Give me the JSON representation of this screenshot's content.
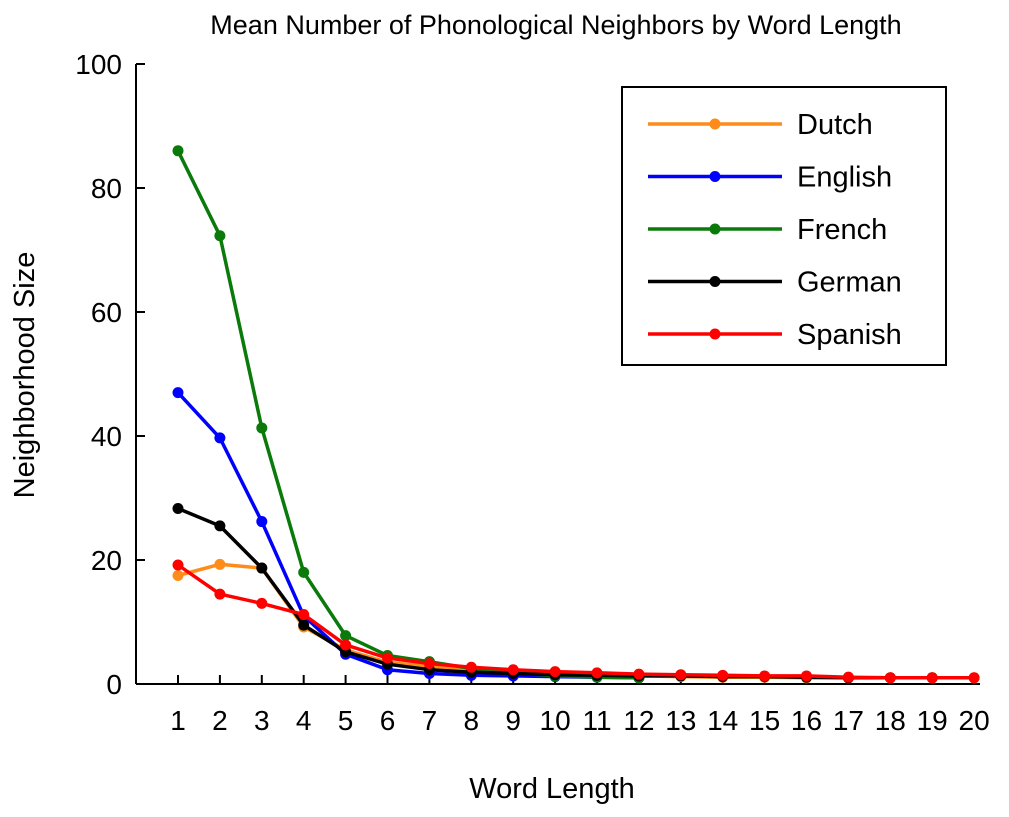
{
  "chart_data": {
    "type": "line",
    "title": "Mean Number of Phonological Neighbors by Word Length",
    "xlabel": "Word Length",
    "ylabel": "Neighborhood Size",
    "ylim": [
      0,
      100
    ],
    "yticks": [
      0,
      20,
      40,
      60,
      80,
      100
    ],
    "xlim": [
      0.5,
      20
    ],
    "x": [
      1,
      2,
      3,
      4,
      5,
      6,
      7,
      8,
      9,
      10,
      11,
      12,
      13,
      14,
      15,
      16,
      17,
      18,
      19,
      20
    ],
    "xtick_labels": [
      "1",
      "2",
      "3",
      "4",
      "5",
      "6",
      "7",
      "8",
      "9",
      "10",
      "11",
      "12",
      "13",
      "14",
      "15",
      "16",
      "17",
      "18",
      "19",
      "20"
    ],
    "grid": false,
    "legend_position": "top-right",
    "series": [
      {
        "name": "Dutch",
        "color": "#ff8c1a",
        "x": [
          1,
          2,
          3,
          4,
          5,
          6,
          7,
          8,
          9,
          10,
          11,
          12,
          13,
          14,
          15,
          16,
          17,
          18,
          19,
          20
        ],
        "values": [
          17.5,
          19.3,
          18.7,
          9.2,
          5.5,
          3.5,
          2.8,
          2.2,
          1.9,
          1.7,
          1.5,
          1.3,
          1.2,
          1.1,
          1.1,
          1.0,
          1.0,
          1.0,
          1.0,
          1.0
        ]
      },
      {
        "name": "English",
        "color": "#0000ff",
        "x": [
          1,
          2,
          3,
          4,
          5,
          6,
          7,
          8,
          9,
          10,
          11,
          12
        ],
        "values": [
          47.0,
          39.7,
          26.2,
          11.0,
          4.8,
          2.3,
          1.7,
          1.4,
          1.3,
          1.2,
          1.1,
          1.0
        ]
      },
      {
        "name": "French",
        "color": "#0a7a0a",
        "x": [
          1,
          2,
          3,
          4,
          5,
          6,
          7,
          8,
          9,
          10,
          11,
          12
        ],
        "values": [
          86.0,
          72.3,
          41.3,
          18.0,
          7.8,
          4.6,
          3.6,
          2.5,
          1.8,
          1.3,
          1.1,
          1.0
        ]
      },
      {
        "name": "German",
        "color": "#000000",
        "x": [
          1,
          2,
          3,
          4,
          5,
          6,
          7,
          8,
          9,
          10,
          11,
          12,
          13,
          14,
          15,
          16,
          17,
          18,
          19
        ],
        "values": [
          28.3,
          25.5,
          18.7,
          9.5,
          5.2,
          3.2,
          2.3,
          1.9,
          1.7,
          1.5,
          1.4,
          1.3,
          1.3,
          1.2,
          1.2,
          1.1,
          1.0,
          1.0,
          1.0
        ]
      },
      {
        "name": "Spanish",
        "color": "#ff0000",
        "x": [
          1,
          2,
          3,
          4,
          5,
          6,
          7,
          8,
          9,
          10,
          11,
          12,
          13,
          14,
          15,
          16,
          17,
          18,
          19,
          20
        ],
        "values": [
          19.2,
          14.5,
          13.0,
          11.2,
          6.3,
          4.2,
          3.3,
          2.7,
          2.3,
          2.0,
          1.8,
          1.6,
          1.5,
          1.4,
          1.3,
          1.3,
          1.1,
          1.0,
          1.0,
          1.0
        ]
      }
    ]
  }
}
